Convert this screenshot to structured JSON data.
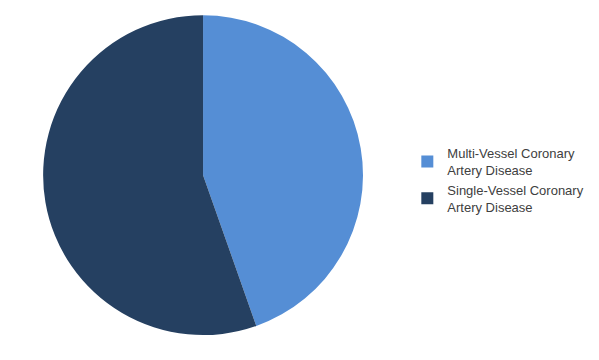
{
  "chart_data": {
    "type": "pie",
    "categories": [
      "Multi-Vessel Coronary Artery Disease",
      "Single-Vessel Coronary Artery Disease"
    ],
    "values": [
      44.6,
      55.4
    ],
    "colors": [
      "#558ed5",
      "#254061"
    ],
    "legend": "right",
    "data_labels": false
  }
}
